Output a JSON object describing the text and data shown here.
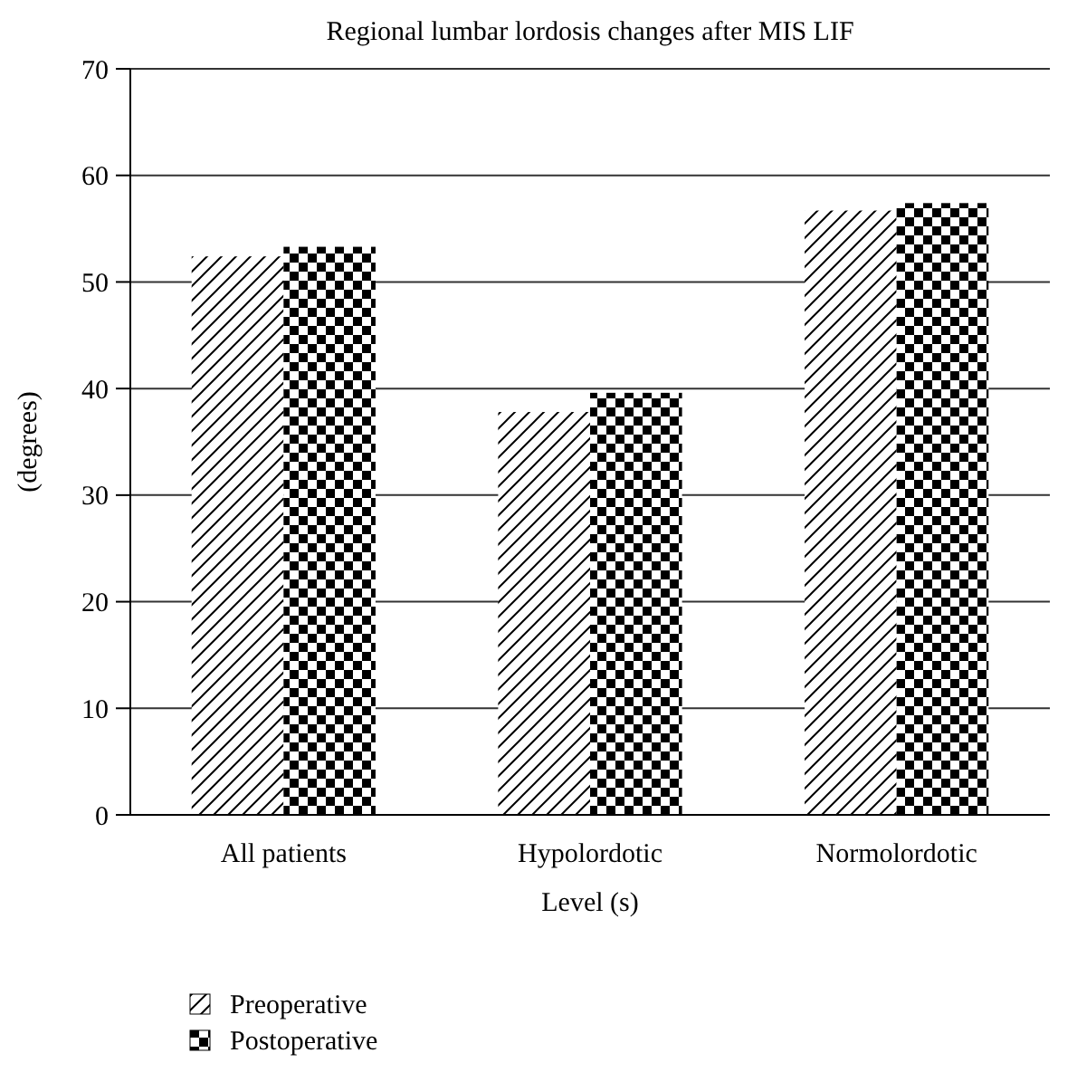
{
  "chart_data": {
    "type": "bar",
    "title": "Regional lumbar lordosis changes after MIS LIF",
    "xlabel": "Level (s)",
    "ylabel": "(degrees)",
    "categories": [
      "All patients",
      "Hypolordotic",
      "Normolordotic"
    ],
    "series": [
      {
        "name": "Preoperative",
        "color": "#000000",
        "values": [
          52.4,
          37.8,
          56.7
        ]
      },
      {
        "name": "Postoperative",
        "color": "#000000",
        "values": [
          53.3,
          39.6,
          57.4
        ]
      }
    ],
    "ylim": [
      0,
      70
    ],
    "yticks": [
      0,
      10,
      20,
      30,
      40,
      50,
      60,
      70
    ],
    "grid": "y",
    "legend": "bottom left"
  }
}
